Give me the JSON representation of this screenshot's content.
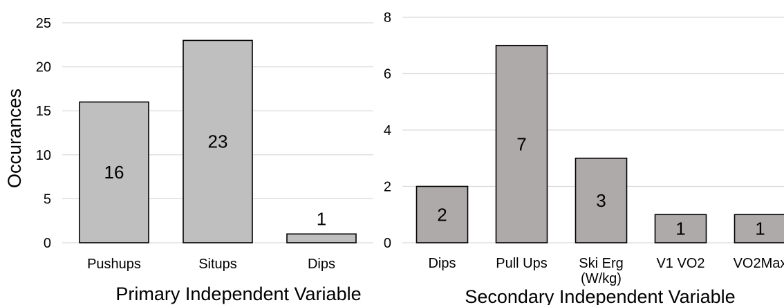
{
  "chart_data": [
    {
      "type": "bar",
      "categories": [
        "Pushups",
        "Situps",
        "Dips"
      ],
      "values": [
        16,
        23,
        1
      ],
      "data_labels": [
        "16",
        "23",
        "1"
      ],
      "title": "",
      "xlabel": "Primary Independent Variable",
      "ylabel": "Occurances",
      "ylim": [
        0,
        25
      ],
      "yticks": [
        "0",
        "5",
        "10",
        "15",
        "20",
        "25"
      ],
      "grid": true,
      "legend": "none",
      "bar_color": "#bfbfbf"
    },
    {
      "type": "bar",
      "categories": [
        "Dips",
        "Pull Ups",
        "Ski Erg (W/kg)",
        "V1 VO2",
        "VO2Max"
      ],
      "category_lines": [
        [
          "Dips"
        ],
        [
          "Pull Ups"
        ],
        [
          "Ski Erg",
          "(W/kg)"
        ],
        [
          "V1 VO2"
        ],
        [
          "VO2Max"
        ]
      ],
      "values": [
        2,
        7,
        3,
        1,
        1
      ],
      "data_labels": [
        "2",
        "7",
        "3",
        "1",
        "1"
      ],
      "title": "",
      "xlabel": "Secondary Independent Variable",
      "ylabel": "",
      "ylim": [
        0,
        8
      ],
      "yticks": [
        "0",
        "2",
        "4",
        "6",
        "8"
      ],
      "grid": true,
      "legend": "none",
      "bar_color": "#aeaaaa"
    }
  ]
}
